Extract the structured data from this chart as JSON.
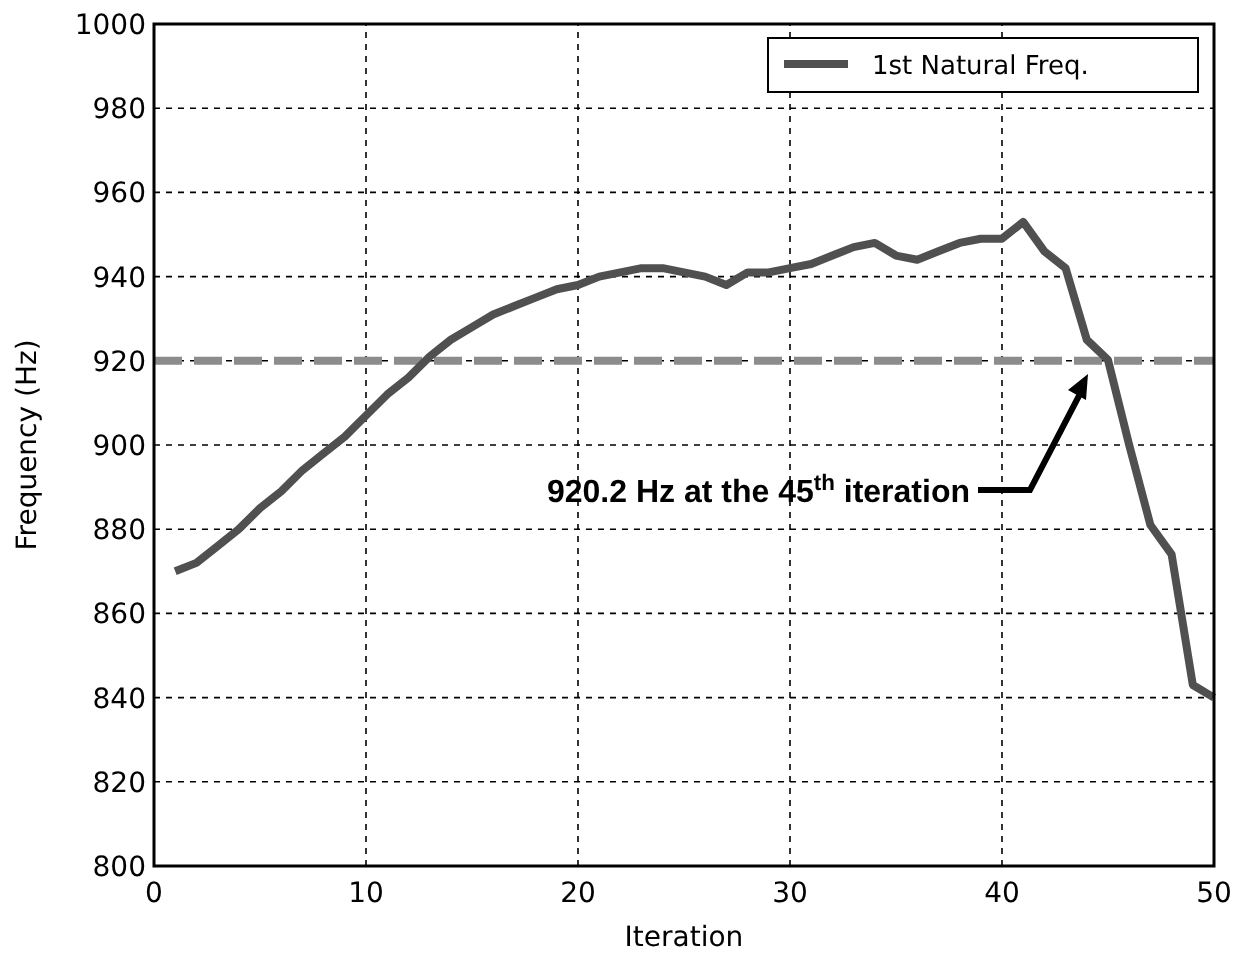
{
  "chart_data": {
    "type": "line",
    "xlabel": "Iteration",
    "ylabel": "Frequency (Hz)",
    "xlim": [
      0,
      50
    ],
    "xticks": [
      0,
      10,
      20,
      30,
      40,
      50
    ],
    "ylim": [
      800,
      1000
    ],
    "yticks": [
      800,
      820,
      840,
      860,
      880,
      900,
      920,
      940,
      960,
      980,
      1000
    ],
    "grid": true,
    "legend": "top right",
    "line_style": "solid",
    "marker": "none",
    "x": [
      1,
      2,
      3,
      4,
      5,
      6,
      7,
      8,
      9,
      10,
      11,
      12,
      13,
      14,
      15,
      16,
      17,
      18,
      19,
      20,
      21,
      22,
      23,
      24,
      25,
      26,
      27,
      28,
      29,
      30,
      31,
      32,
      33,
      34,
      35,
      36,
      37,
      38,
      39,
      40,
      41,
      42,
      43,
      44,
      45,
      46,
      47,
      48,
      49,
      50
    ],
    "series": [
      {
        "name": "1st Natural Freq.",
        "color": "#505050",
        "values": [
          870,
          872,
          876,
          880,
          885,
          889,
          894,
          898,
          902,
          907,
          912,
          916,
          921,
          925,
          928,
          931,
          933,
          935,
          937,
          938,
          940,
          941,
          942,
          942,
          941,
          940,
          938,
          941,
          941,
          942,
          943,
          945,
          947,
          948,
          945,
          944,
          946,
          948,
          949,
          949,
          953,
          946,
          942,
          925,
          920.2,
          900,
          881,
          874,
          843,
          840
        ]
      }
    ],
    "ref_lines": [
      {
        "axis": "y",
        "value": 920,
        "color": "#8c8c8c",
        "line_style": "dashed"
      }
    ],
    "annotations": [
      "920.2 Hz at the 45$^{th}$ iteration"
    ]
  }
}
